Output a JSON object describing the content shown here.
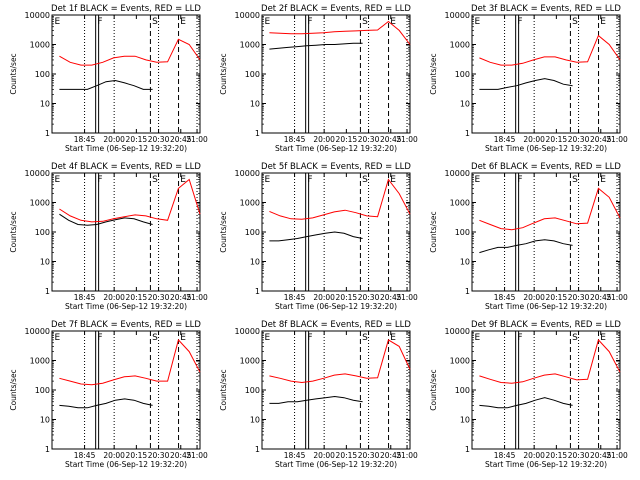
{
  "figure": {
    "xlabel": "Start Time (06-Sep-12 19:32:20)",
    "ylabel": "Counts/sec",
    "x_ticks": [
      "18:45",
      "20:00",
      "20:15",
      "20:30",
      "20:45",
      "21:00"
    ],
    "y_ticks": [
      "1",
      "10",
      "100",
      "1000",
      "10000"
    ],
    "colors": {
      "events": "#000000",
      "lld": "#ff0000"
    }
  },
  "chart_data": [
    {
      "type": "line",
      "title": "Det 1f BLACK = Events, RED = LLD",
      "markers": [
        "E",
        "F",
        "S",
        "E"
      ],
      "yscale": "log",
      "ylim": [
        1,
        10000
      ],
      "series": [
        {
          "color": "#000000",
          "values": [
            30,
            30,
            30,
            30,
            40,
            55,
            60,
            50,
            40,
            30,
            30
          ]
        },
        {
          "color": "#ff0000",
          "values": [
            400,
            250,
            200,
            200,
            250,
            350,
            400,
            400,
            300,
            250,
            260,
            1500,
            1000,
            300
          ]
        }
      ]
    },
    {
      "type": "line",
      "title": "Det 2f BLACK = Events, RED = LLD",
      "markers": [
        "E",
        "F",
        "S",
        "E"
      ],
      "yscale": "log",
      "ylim": [
        1,
        10000
      ],
      "series": [
        {
          "color": "#000000",
          "values": [
            700,
            750,
            800,
            850,
            900,
            950,
            1000,
            1000,
            1050,
            1100,
            1100
          ]
        },
        {
          "color": "#ff0000",
          "values": [
            2500,
            2400,
            2300,
            2300,
            2400,
            2500,
            2700,
            2800,
            2900,
            3000,
            3100,
            6000,
            3000,
            1000
          ]
        }
      ]
    },
    {
      "type": "line",
      "title": "Det 3f BLACK = Events, RED = LLD",
      "markers": [
        "E",
        "F",
        "S",
        "E"
      ],
      "yscale": "log",
      "ylim": [
        1,
        10000
      ],
      "series": [
        {
          "color": "#000000",
          "values": [
            30,
            30,
            30,
            35,
            40,
            50,
            60,
            70,
            60,
            45,
            40
          ]
        },
        {
          "color": "#ff0000",
          "values": [
            350,
            250,
            200,
            200,
            230,
            300,
            380,
            380,
            300,
            250,
            260,
            2000,
            1000,
            300
          ]
        }
      ]
    },
    {
      "type": "line",
      "title": "Det 4f BLACK = Events, RED = LLD",
      "markers": [
        "E",
        "F",
        "S",
        "E"
      ],
      "yscale": "log",
      "ylim": [
        1,
        10000
      ],
      "series": [
        {
          "color": "#000000",
          "values": [
            400,
            250,
            180,
            170,
            180,
            220,
            260,
            300,
            280,
            220,
            180
          ]
        },
        {
          "color": "#ff0000",
          "values": [
            600,
            350,
            250,
            220,
            230,
            280,
            330,
            380,
            350,
            280,
            250,
            3000,
            6000,
            400
          ]
        }
      ]
    },
    {
      "type": "line",
      "title": "Det 5f BLACK = Events, RED = LLD",
      "markers": [
        "E",
        "F",
        "S",
        "E"
      ],
      "yscale": "log",
      "ylim": [
        1,
        10000
      ],
      "series": [
        {
          "color": "#000000",
          "values": [
            50,
            50,
            55,
            60,
            70,
            80,
            90,
            100,
            90,
            70,
            60
          ]
        },
        {
          "color": "#ff0000",
          "values": [
            500,
            350,
            280,
            270,
            300,
            380,
            480,
            550,
            450,
            350,
            330,
            6000,
            2000,
            400
          ]
        }
      ]
    },
    {
      "type": "line",
      "title": "Det 6f BLACK = Events, RED = LLD",
      "markers": [
        "E",
        "F",
        "S",
        "E"
      ],
      "yscale": "log",
      "ylim": [
        1,
        10000
      ],
      "series": [
        {
          "color": "#000000",
          "values": [
            20,
            25,
            30,
            30,
            35,
            40,
            50,
            55,
            50,
            40,
            35
          ]
        },
        {
          "color": "#ff0000",
          "values": [
            250,
            180,
            130,
            120,
            140,
            200,
            280,
            300,
            240,
            190,
            200,
            3000,
            1500,
            300
          ]
        }
      ]
    },
    {
      "type": "line",
      "title": "Det 7f BLACK = Events, RED = LLD",
      "markers": [
        "E",
        "F",
        "S",
        "E"
      ],
      "yscale": "log",
      "ylim": [
        1,
        10000
      ],
      "series": [
        {
          "color": "#000000",
          "values": [
            30,
            28,
            25,
            25,
            30,
            35,
            45,
            50,
            45,
            35,
            30
          ]
        },
        {
          "color": "#ff0000",
          "values": [
            250,
            200,
            160,
            150,
            170,
            220,
            280,
            300,
            250,
            200,
            200,
            5000,
            2000,
            400
          ]
        }
      ]
    },
    {
      "type": "line",
      "title": "Det 8f BLACK = Events, RED = LLD",
      "markers": [
        "E",
        "F",
        "S",
        "E"
      ],
      "yscale": "log",
      "ylim": [
        1,
        10000
      ],
      "series": [
        {
          "color": "#000000",
          "values": [
            35,
            35,
            40,
            40,
            45,
            50,
            55,
            60,
            55,
            45,
            40
          ]
        },
        {
          "color": "#ff0000",
          "values": [
            300,
            250,
            200,
            180,
            200,
            250,
            320,
            350,
            300,
            250,
            260,
            5000,
            3000,
            500
          ]
        }
      ]
    },
    {
      "type": "line",
      "title": "Det 9f BLACK = Events, RED = LLD",
      "markers": [
        "E",
        "F",
        "S",
        "E"
      ],
      "yscale": "log",
      "ylim": [
        1,
        10000
      ],
      "series": [
        {
          "color": "#000000",
          "values": [
            30,
            28,
            25,
            25,
            30,
            35,
            45,
            55,
            45,
            35,
            30
          ]
        },
        {
          "color": "#ff0000",
          "values": [
            300,
            230,
            180,
            170,
            190,
            250,
            320,
            350,
            280,
            220,
            230,
            5000,
            2000,
            400
          ]
        }
      ]
    }
  ]
}
